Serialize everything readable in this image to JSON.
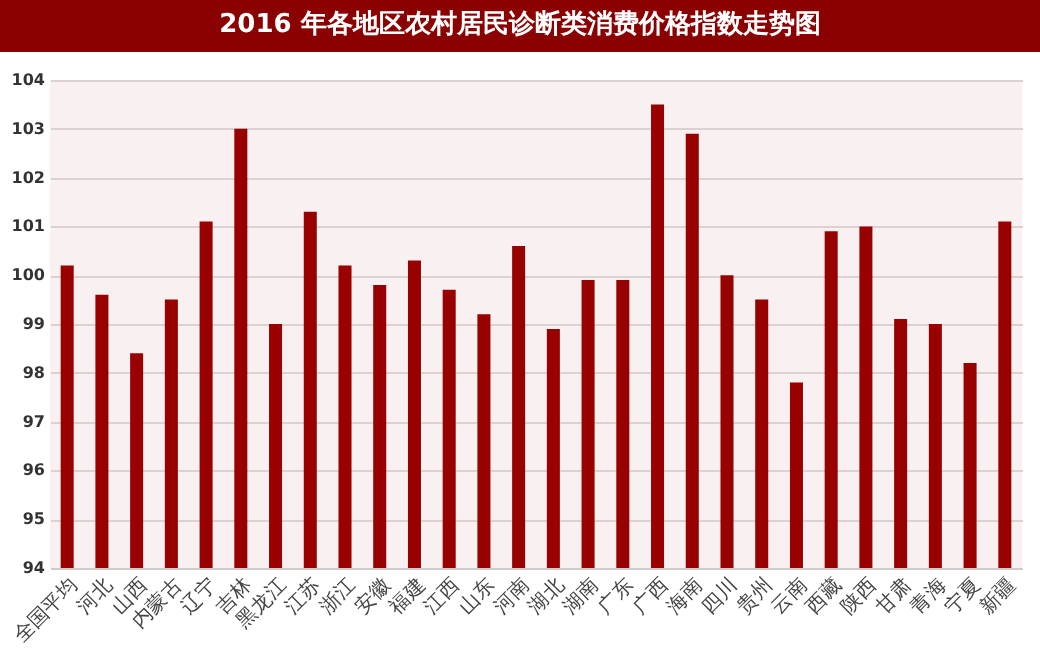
{
  "chart_data": {
    "type": "bar",
    "title": "2016 年各地区农村居民诊断类消费价格指数走势图",
    "categories": [
      "全国平均",
      "河北",
      "山西",
      "内蒙古",
      "辽宁",
      "吉林",
      "黑龙江",
      "江苏",
      "浙江",
      "安徽",
      "福建",
      "江西",
      "山东",
      "河南",
      "湖北",
      "湖南",
      "广东",
      "广西",
      "海南",
      "四川",
      "贵州",
      "云南",
      "西藏",
      "陕西",
      "甘肃",
      "青海",
      "宁夏",
      "新疆"
    ],
    "values": [
      100.2,
      99.6,
      98.4,
      99.5,
      101.1,
      103.0,
      99.0,
      101.3,
      100.2,
      99.8,
      100.3,
      99.7,
      99.2,
      100.6,
      98.9,
      99.9,
      99.9,
      103.5,
      102.9,
      100.0,
      99.5,
      97.8,
      100.9,
      101.0,
      99.1,
      99.0,
      98.2,
      101.1
    ],
    "color": "#990000",
    "ylim": [
      94,
      104
    ],
    "yticks": [
      94,
      95,
      96,
      97,
      98,
      99,
      100,
      101,
      102,
      103,
      104
    ],
    "grid": "y"
  }
}
